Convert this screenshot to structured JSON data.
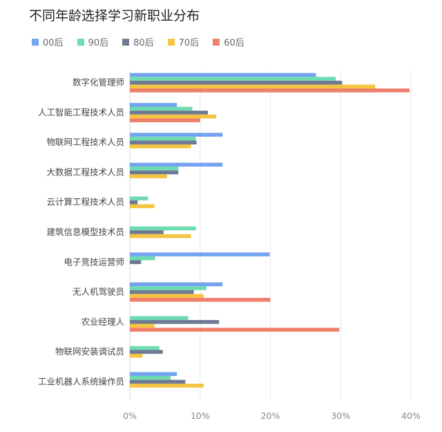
{
  "title": "不同年龄选择学习新职业分布",
  "chart_data": {
    "type": "bar",
    "orientation": "horizontal",
    "title": "不同年龄选择学习新职业分布",
    "xlabel": "",
    "ylabel": "",
    "xlim": [
      0,
      40
    ],
    "x_ticks": [
      "0%",
      "10%",
      "20%",
      "30%",
      "40%"
    ],
    "grid": "vertical",
    "legend_position": "top-left",
    "categories": [
      "数字化管理师",
      "人工智能工程技术人员",
      "物联网工程技术人员",
      "大数据工程技术人员",
      "云计算工程技术人员",
      "建筑信息模型技术员",
      "电子竞技运营师",
      "无人机驾驶员",
      "农业经理人",
      "物联网安装调试员",
      "工业机器人系统操作员"
    ],
    "series": [
      {
        "name": "00后",
        "color": "#74a3f0",
        "values": [
          26.5,
          6.7,
          13.2,
          13.2,
          0,
          0,
          19.9,
          13.2,
          0,
          0,
          6.7
        ]
      },
      {
        "name": "90后",
        "color": "#6fdbb0",
        "values": [
          29.3,
          8.9,
          9.4,
          6.9,
          2.6,
          9.4,
          3.6,
          10.9,
          8.3,
          4.2,
          5.8
        ]
      },
      {
        "name": "80后",
        "color": "#6e7a93",
        "values": [
          30.2,
          11.1,
          9.5,
          6.9,
          1.1,
          4.8,
          1.6,
          9.1,
          12.7,
          4.7,
          7.9
        ]
      },
      {
        "name": "70后",
        "color": "#f5c440",
        "values": [
          34.9,
          12.3,
          8.7,
          5.3,
          3.5,
          8.7,
          0,
          10.5,
          3.5,
          1.8,
          10.5
        ]
      },
      {
        "name": "60后",
        "color": "#ee7f6a",
        "values": [
          39.8,
          10.0,
          0,
          0,
          0,
          0,
          0,
          20.0,
          29.8,
          0,
          0
        ]
      }
    ]
  }
}
